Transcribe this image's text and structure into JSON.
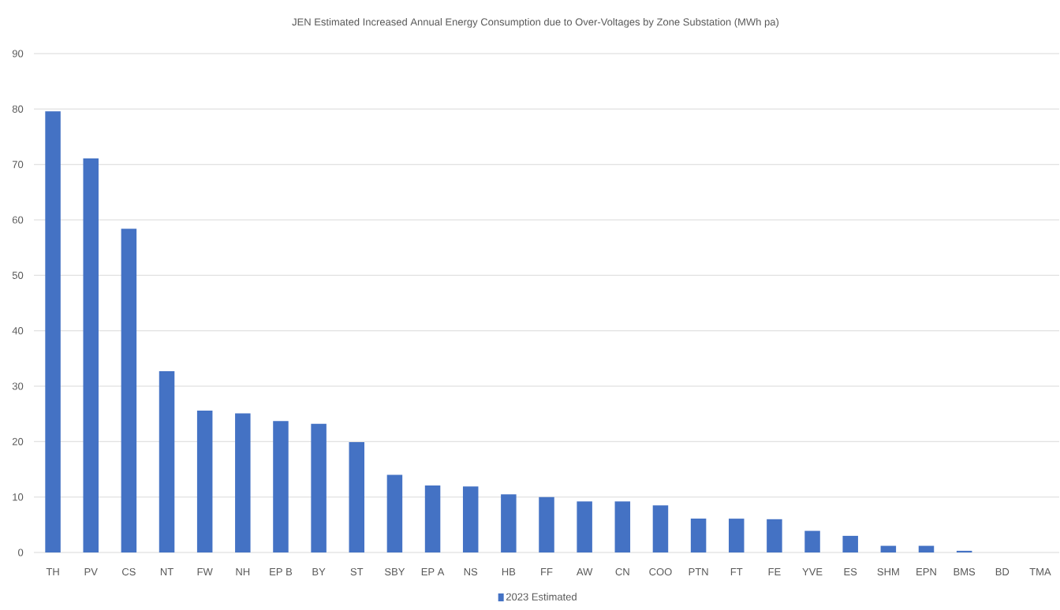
{
  "chart_data": {
    "type": "bar",
    "title": "JEN Estimated Increased Annual Energy Consumption due to Over-Voltages by Zone Substation (MWh pa)",
    "categories": [
      "TH",
      "PV",
      "CS",
      "NT",
      "FW",
      "NH",
      "EP B",
      "BY",
      "ST",
      "SBY",
      "EP A",
      "NS",
      "HB",
      "FF",
      "AW",
      "CN",
      "COO",
      "PTN",
      "FT",
      "FE",
      "YVE",
      "ES",
      "SHM",
      "EPN",
      "BMS",
      "BD",
      "TMA"
    ],
    "series": [
      {
        "name": "2023 Estimated",
        "color": "#4472c4",
        "values": [
          79.6,
          71.1,
          58.4,
          32.7,
          25.6,
          25.1,
          23.7,
          23.2,
          19.9,
          14.0,
          12.1,
          11.9,
          10.5,
          10.0,
          9.2,
          9.2,
          8.5,
          6.1,
          6.1,
          6.0,
          3.9,
          3.0,
          1.2,
          1.2,
          0.3,
          0,
          0
        ]
      }
    ],
    "ylim": [
      0,
      90
    ],
    "yticks": [
      0,
      10,
      20,
      30,
      40,
      50,
      60,
      70,
      80,
      90
    ],
    "grid": "y",
    "legend": "bottom"
  }
}
